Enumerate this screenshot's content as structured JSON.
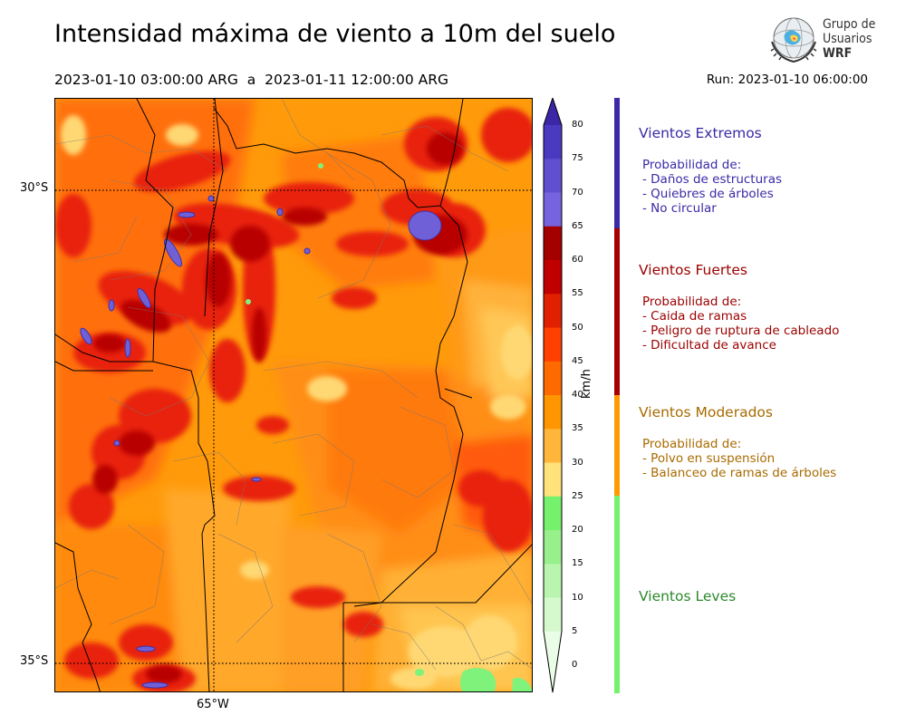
{
  "title": "Intensidad máxima de viento a 10m del suelo",
  "period": "2023-01-10 03:00:00 ARG  a  2023-01-11 12:00:00 ARG",
  "run": "Run: 2023-01-10 06:00:00",
  "logo": {
    "line1": "Grupo de",
    "line2": "Usuarios",
    "line3": "WRF"
  },
  "map": {
    "lat_labels": [
      "30°S",
      "35°S"
    ],
    "lon_labels": [
      "65°W"
    ]
  },
  "colorbar": {
    "unit": "km/h",
    "ticks": [
      "80",
      "75",
      "70",
      "65",
      "60",
      "55",
      "50",
      "45",
      "40",
      "35",
      "30",
      "25",
      "20",
      "15",
      "10",
      "5",
      "0"
    ],
    "colors": [
      "#3b26a6",
      "#4a3ac0",
      "#6050d0",
      "#7563e0",
      "#a50000",
      "#c00000",
      "#e02000",
      "#ff4000",
      "#ff6a00",
      "#ff9500",
      "#ffb63a",
      "#ffe27a",
      "#76f16e",
      "#98f08c",
      "#b9f5ae",
      "#d5f9cc",
      "#eafde7"
    ]
  },
  "categories": [
    {
      "title": "Vientos Extremos",
      "color": "#3a2aa6",
      "bar": "#3a2aa6",
      "intro": "Probabilidad de:",
      "items": [
        "- Daños de estructuras",
        "- Quiebres de árboles",
        "- No circular"
      ]
    },
    {
      "title": "Vientos Fuertes",
      "color": "#9b0000",
      "bar": "#a80000",
      "intro": "Probabilidad de:",
      "items": [
        "- Caida de ramas",
        "- Peligro de ruptura de cableado",
        "- Dificultad de avance"
      ]
    },
    {
      "title": "Vientos Moderados",
      "color": "#a86b00",
      "bar": "#ff9a00",
      "intro": "Probabilidad de:",
      "items": [
        "- Polvo en suspensión",
        "- Balanceo de ramas de árboles"
      ]
    },
    {
      "title": "Vientos Leves",
      "color": "#2a8a2a",
      "bar": "#76f16e",
      "intro": "",
      "items": []
    }
  ]
}
